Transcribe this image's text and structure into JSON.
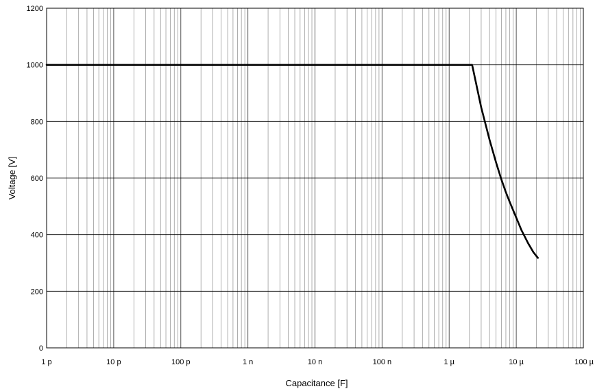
{
  "chart_data": {
    "type": "line",
    "title": "",
    "xlabel": "Capacitance [F]",
    "ylabel": "Voltage [V]",
    "xscale": "log",
    "xlim": [
      1e-12,
      0.0001
    ],
    "ylim": [
      0,
      1200
    ],
    "grid": true,
    "x_ticks": [
      {
        "value": 1e-12,
        "label": "1 p"
      },
      {
        "value": 1e-11,
        "label": "10 p"
      },
      {
        "value": 1e-10,
        "label": "100 p"
      },
      {
        "value": 1e-09,
        "label": "1 n"
      },
      {
        "value": 1e-08,
        "label": "10 n"
      },
      {
        "value": 1e-07,
        "label": "100 n"
      },
      {
        "value": 1e-06,
        "label": "1 µ"
      },
      {
        "value": 1e-05,
        "label": "10 µ"
      },
      {
        "value": 0.0001,
        "label": "100 µ"
      }
    ],
    "y_ticks": [
      {
        "value": 0,
        "label": "0"
      },
      {
        "value": 200,
        "label": "200"
      },
      {
        "value": 400,
        "label": "400"
      },
      {
        "value": 600,
        "label": "600"
      },
      {
        "value": 800,
        "label": "800"
      },
      {
        "value": 1000,
        "label": "1000"
      },
      {
        "value": 1200,
        "label": "1200"
      }
    ],
    "series": [
      {
        "color": "#000000",
        "x": [
          1e-12,
          2.2e-06,
          3e-06,
          4e-06,
          5e-06,
          6e-06,
          7e-06,
          8e-06,
          1e-05,
          1.2e-05,
          1.5e-05,
          1.8e-05,
          2.1e-05
        ],
        "y": [
          1000,
          1000,
          850,
          735,
          655,
          595,
          550,
          515,
          460,
          415,
          370,
          338,
          318
        ]
      }
    ]
  }
}
